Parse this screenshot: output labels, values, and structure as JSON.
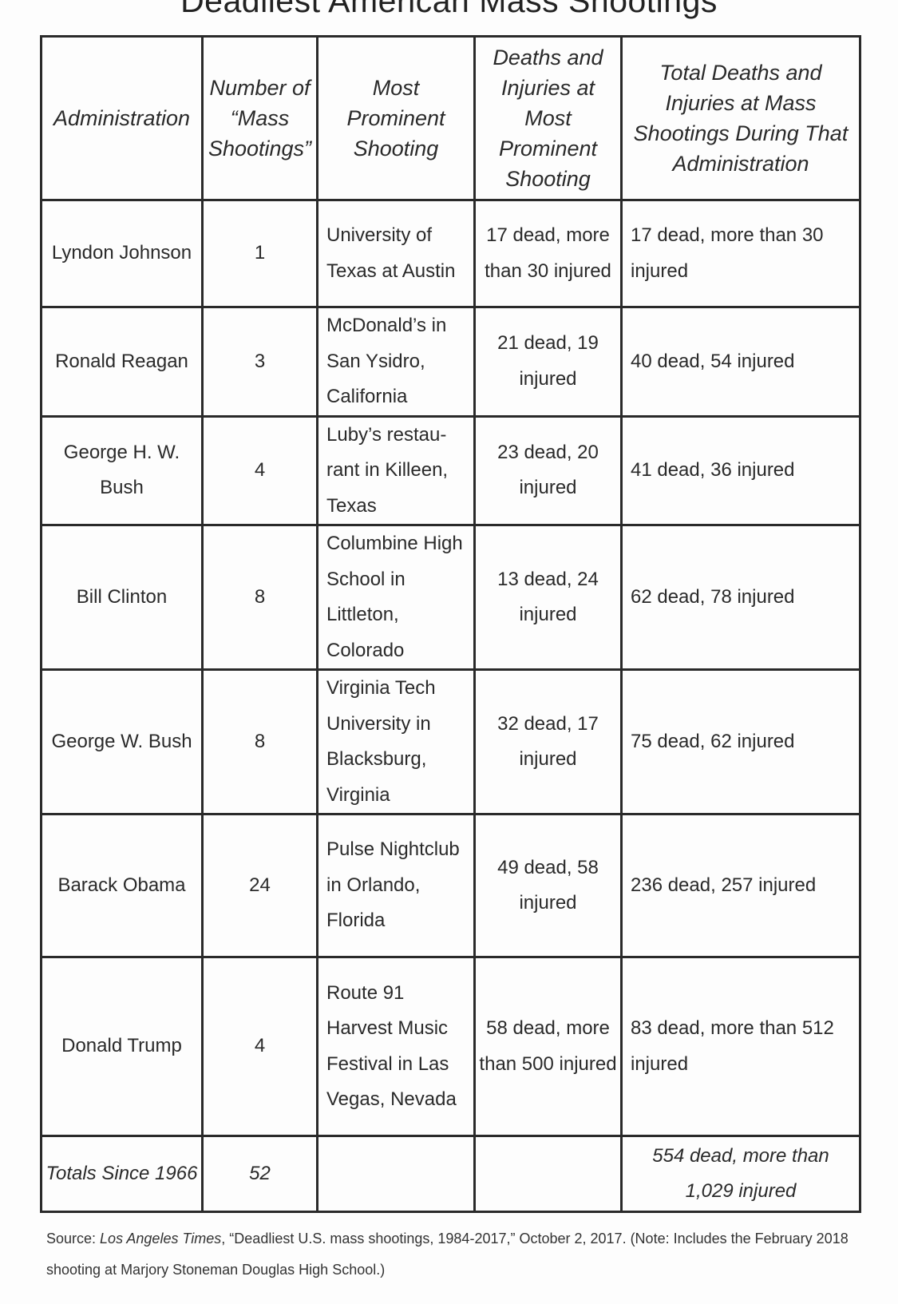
{
  "title": "Deadliest American Mass Shootings",
  "headers": [
    "Administration",
    "Number of “Mass Shootings”",
    "Most Prominent Shooting",
    "Deaths and Injuries at Most Prominent Shooting",
    "Total Deaths and Injuries at Mass Shootings During That Administration"
  ],
  "rows": [
    {
      "administration": "Lyndon Johnson",
      "count": "1",
      "shooting": "University of Texas at Austin",
      "deaths": "17 dead, more than 30 injured",
      "totals": "17 dead, more than 30 injured"
    },
    {
      "administration": "Ronald Reagan",
      "count": "3",
      "shooting": "McDonald’s in San Ysidro, California",
      "deaths": "21 dead, 19 injured",
      "totals": "40 dead, 54 injured"
    },
    {
      "administration": "George H. W. Bush",
      "count": "4",
      "shooting": "Luby’s restau-rant in Killeen, Texas",
      "deaths": "23 dead, 20 injured",
      "totals": "41 dead, 36 injured"
    },
    {
      "administration": "Bill Clinton",
      "count": "8",
      "shooting": "Columbine High School in Littleton, Colorado",
      "deaths": "13 dead, 24 injured",
      "totals": "62 dead, 78 injured"
    },
    {
      "administration": "George W. Bush",
      "count": "8",
      "shooting": "Virginia Tech University in Blacksburg, Virginia",
      "deaths": "32 dead, 17 injured",
      "totals": "75 dead, 62 injured"
    },
    {
      "administration": "Barack Obama",
      "count": "24",
      "shooting": "Pulse Nightclub in Orlando, Florida",
      "deaths": "49 dead, 58 injured",
      "totals": "236 dead, 257 injured"
    },
    {
      "administration": "Donald Trump",
      "count": "4",
      "shooting": "Route 91 Harvest Music Festival in Las Vegas, Nevada",
      "deaths": "58 dead, more than 500 injured",
      "totals": "83 dead, more than 512 injured"
    }
  ],
  "totals_row": {
    "label": "Totals Since 1966",
    "count": "52",
    "shooting": "",
    "deaths": "",
    "totals": "554 dead, more than 1,029 injured"
  },
  "source": {
    "prefix": "Source: ",
    "publication": "Los Angeles Times",
    "rest": ", “Deadliest U.S. mass shootings, 1984-2017,” October 2, 2017. (Note: Includes the February 2018 shooting at Marjory Stoneman Douglas High School.)"
  }
}
